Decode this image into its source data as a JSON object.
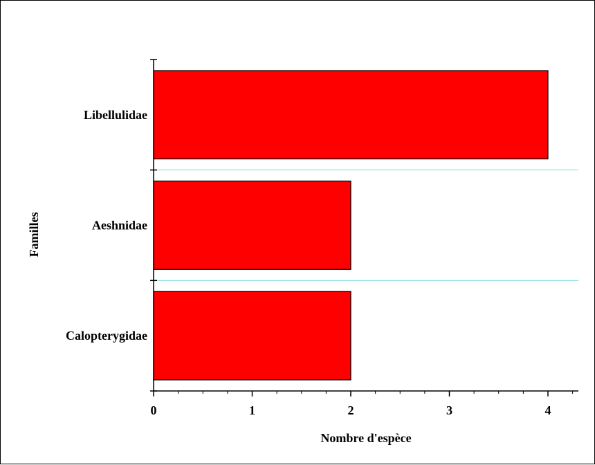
{
  "chart_data": {
    "type": "bar",
    "orientation": "horizontal",
    "categories": [
      "Libellulidae",
      "Aeshnidae",
      "Calopterygidae"
    ],
    "values": [
      4,
      2,
      2
    ],
    "xlabel": "Nombre d'espèce",
    "ylabel": "Familles",
    "xlim": [
      0,
      4.3
    ],
    "xticks": [
      0,
      1,
      2,
      3,
      4
    ],
    "x_tick_labels": [
      "0",
      "1",
      "2",
      "3",
      "4"
    ],
    "grid": "horizontal separators",
    "colors": {
      "bar": "#ff0000",
      "bar_edge": "#000000",
      "grid": "#7fe0e0"
    }
  }
}
